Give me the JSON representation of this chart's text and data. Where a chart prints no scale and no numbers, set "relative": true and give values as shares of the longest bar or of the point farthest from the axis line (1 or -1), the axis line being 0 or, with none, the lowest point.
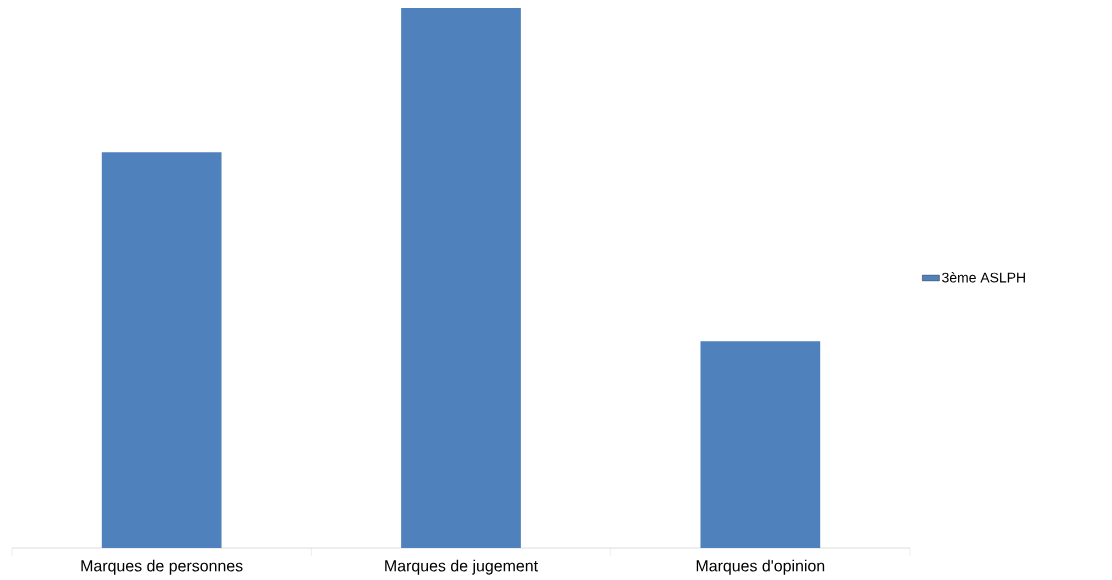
{
  "chart_data": {
    "type": "bar",
    "categories": [
      "Marques de personnes",
      "Marques de jugement",
      "Marques d'opinion"
    ],
    "series": [
      {
        "name": "3ème ASLPH",
        "color": "#4f81bd",
        "values": [
          0.733,
          1,
          0.383
        ]
      }
    ],
    "relative": true,
    "legend": "right"
  }
}
